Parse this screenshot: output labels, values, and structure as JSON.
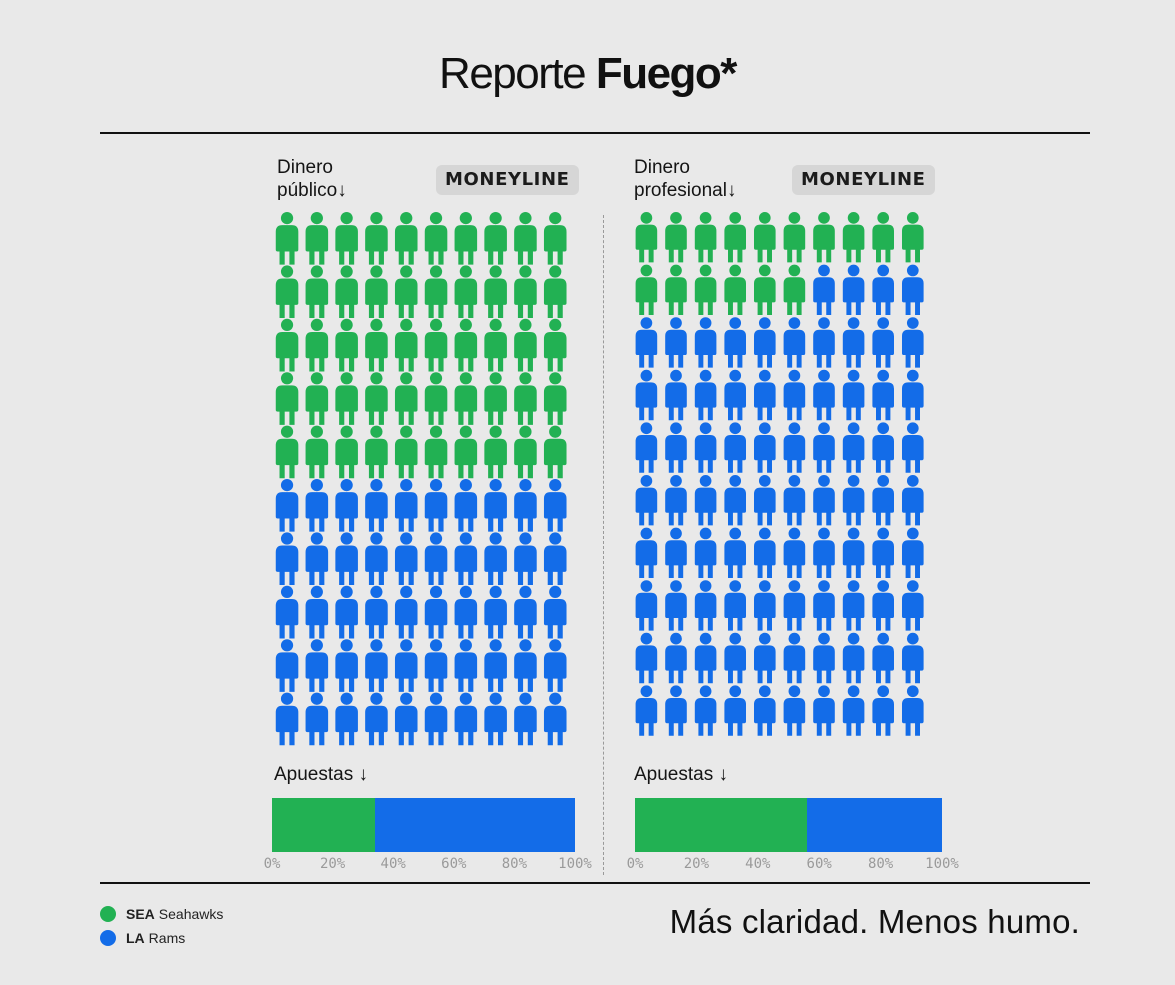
{
  "header": {
    "title_light": "Reporte",
    "title_bold": "Fuego*"
  },
  "colors": {
    "sea": "#22b153",
    "la": "#136ce8"
  },
  "legend": [
    {
      "abbr": "SEA",
      "name": "Seahawks",
      "color": "#22b153"
    },
    {
      "abbr": "LA",
      "name": "Rams",
      "color": "#136ce8"
    }
  ],
  "panels": [
    {
      "label_line1": "Dinero",
      "label_line2": "público↓",
      "badge": "MONEYLINE",
      "bets_label": "Apuestas ↓"
    },
    {
      "label_line1": "Dinero",
      "label_line2": "profesional↓",
      "badge": "MONEYLINE",
      "bets_label": "Apuestas ↓"
    }
  ],
  "chart_data": [
    {
      "type": "pictogram",
      "title": "Dinero público",
      "units_total": 100,
      "series": [
        {
          "name": "SEA Seahawks",
          "value": 50
        },
        {
          "name": "LA Rams",
          "value": 50
        }
      ]
    },
    {
      "type": "pictogram",
      "title": "Dinero profesional",
      "units_total": 100,
      "series": [
        {
          "name": "SEA Seahawks",
          "value": 16
        },
        {
          "name": "LA Rams",
          "value": 84
        }
      ]
    },
    {
      "type": "bar",
      "orientation": "horizontal-stacked",
      "title": "Apuestas",
      "series": [
        {
          "name": "SEA Seahawks",
          "value": 34
        },
        {
          "name": "LA Rams",
          "value": 66
        }
      ],
      "xlim": [
        0,
        100
      ],
      "ticks": [
        "0%",
        "20%",
        "40%",
        "60%",
        "80%",
        "100%"
      ]
    },
    {
      "type": "bar",
      "orientation": "horizontal-stacked",
      "title": "Apuestas",
      "series": [
        {
          "name": "SEA Seahawks",
          "value": 56
        },
        {
          "name": "LA Rams",
          "value": 44
        }
      ],
      "xlim": [
        0,
        100
      ],
      "ticks": [
        "0%",
        "20%",
        "40%",
        "60%",
        "80%",
        "100%"
      ]
    }
  ],
  "footer": {
    "tagline": "Más claridad. Menos humo."
  }
}
